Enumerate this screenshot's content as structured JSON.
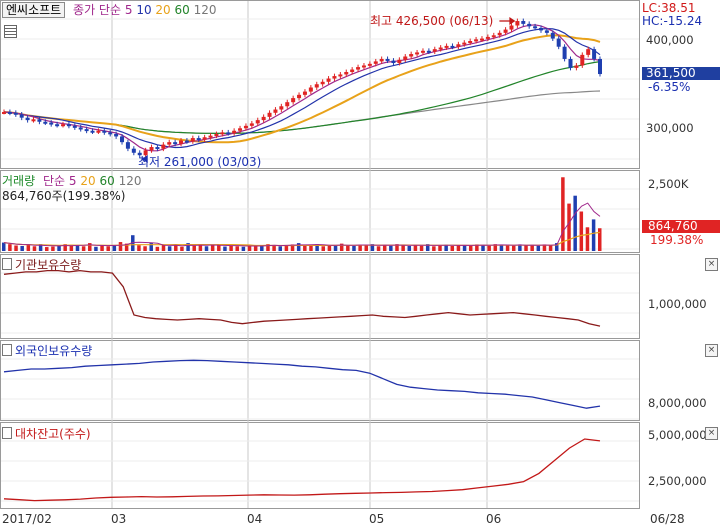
{
  "stock_name": "엔씨소프트",
  "price_pane": {
    "ma_label": "종가 단순",
    "ma_periods": [
      "5",
      "10",
      "20",
      "60",
      "120"
    ],
    "ma_colors": [
      "#a0288c",
      "#2233aa",
      "#e8a21a",
      "#22842a",
      "#888888"
    ],
    "lc": "LC:38.51",
    "hc": "HC:-15.24",
    "current_price": "361,500",
    "current_change": "-6.35%",
    "y_ticks": [
      "400,000",
      "300,000"
    ],
    "high_annotation": "최고 426,500 (06/13)",
    "low_annotation": "최저 261,000 (03/03)"
  },
  "volume_pane": {
    "title": "거래량",
    "ma_label": "단순",
    "ma_periods": [
      "5",
      "20",
      "60",
      "120"
    ],
    "subtitle": "864,760주(199.38%)",
    "y_tick": "2,500K",
    "current_volume": "864,760",
    "current_ratio": "199.38%"
  },
  "inst_pane": {
    "title": "기관보유수량",
    "y_tick": "1,000,000"
  },
  "foreign_pane": {
    "title": "외국인보유수량",
    "y_tick": "8,000,000"
  },
  "loan_pane": {
    "title": "대차잔고(주수)",
    "y_ticks": [
      "5,000,000",
      "2,500,000"
    ]
  },
  "x_axis": [
    "2017/02",
    "03",
    "04",
    "05",
    "06",
    "06/28"
  ],
  "chart_data": [
    {
      "type": "line",
      "title": "엔씨소프트",
      "series": [
        {
          "name": "종가",
          "values": [
            315000,
            314000,
            312000,
            308000,
            305000,
            306000,
            303000,
            302000,
            300000,
            299000,
            300000,
            298000,
            296000,
            294000,
            292000,
            291000,
            292000,
            290000,
            288000,
            285000,
            278000,
            270000,
            265000,
            262000,
            268000,
            272000,
            270000,
            275000,
            278000,
            276000,
            280000,
            279000,
            283000,
            281000,
            284000,
            286000,
            288000,
            290000,
            289000,
            292000,
            295000,
            298000,
            301000,
            305000,
            309000,
            314000,
            318000,
            322000,
            327000,
            332000,
            336000,
            340000,
            345000,
            349000,
            352000,
            356000,
            359000,
            361000,
            364000,
            367000,
            370000,
            372000,
            374000,
            377000,
            380000,
            378000,
            375000,
            379000,
            383000,
            386000,
            388000,
            390000,
            389000,
            392000,
            394000,
            396000,
            395000,
            398000,
            400000,
            402000,
            404000,
            405000,
            407000,
            409000,
            412000,
            416000,
            421000,
            426500,
            423000,
            420000,
            418000,
            415000,
            412000,
            405000,
            395000,
            380000,
            369000,
            372000,
            385000,
            392000,
            380000,
            361500
          ]
        }
      ],
      "ylim": [
        250000,
        440000
      ]
    },
    {
      "type": "bar",
      "title": "거래량",
      "series": [
        {
          "name": "거래량",
          "values": [
            320,
            260,
            210,
            190,
            240,
            180,
            260,
            150,
            170,
            200,
            260,
            230,
            210,
            180,
            300,
            160,
            200,
            180,
            220,
            340,
            280,
            600,
            220,
            180,
            300,
            160,
            240,
            180,
            220,
            160,
            300,
            200,
            240,
            180,
            210,
            260,
            170,
            200,
            180,
            160,
            230,
            180,
            200,
            260,
            210,
            180,
            220,
            250,
            300,
            200,
            230,
            260,
            180,
            210,
            200,
            280,
            220,
            190,
            240,
            210,
            260,
            180,
            230,
            200,
            260,
            210,
            190,
            230,
            200,
            260,
            180,
            220,
            240,
            190,
            230,
            210,
            200,
            250,
            230,
            200,
            260,
            210,
            230,
            200,
            250,
            210,
            230,
            200,
            250,
            220,
            300,
            2800,
            1800,
            2100,
            1500,
            900,
            1200,
            864.76
          ]
        }
      ],
      "ylim": [
        0,
        3000
      ]
    },
    {
      "type": "line",
      "title": "기관보유수량",
      "series": [
        {
          "name": "기관보유수량",
          "values": [
            1350000,
            1360000,
            1370000,
            1370000,
            1380000,
            1380000,
            1370000,
            1380000,
            1370000,
            1370000,
            1360000,
            1250000,
            1020000,
            1000000,
            990000,
            985000,
            980000,
            985000,
            990000,
            985000,
            980000,
            960000,
            950000,
            960000,
            970000,
            975000,
            980000,
            985000,
            990000,
            995000,
            1000000,
            1005000,
            1010000,
            1015000,
            1020000,
            1010000,
            1005000,
            1000000,
            1010000,
            1020000,
            1030000,
            1040000,
            1030000,
            1020000,
            1025000,
            1030000,
            1035000,
            1040000,
            1030000,
            1020000,
            1010000,
            1000000,
            990000,
            980000,
            950000,
            930000
          ]
        }
      ],
      "ylim": [
        850000,
        1450000
      ]
    },
    {
      "type": "line",
      "title": "외국인보유수량",
      "series": [
        {
          "name": "외국인보유수량",
          "values": [
            8230000,
            8240000,
            8250000,
            8250000,
            8255000,
            8260000,
            8270000,
            8275000,
            8280000,
            8285000,
            8290000,
            8300000,
            8305000,
            8310000,
            8312000,
            8310000,
            8305000,
            8300000,
            8295000,
            8290000,
            8285000,
            8280000,
            8270000,
            8265000,
            8255000,
            8245000,
            8240000,
            8220000,
            8180000,
            8140000,
            8120000,
            8110000,
            8100000,
            8095000,
            8090000,
            8080000,
            8075000,
            8070000,
            8060000,
            8050000,
            8030000,
            8010000,
            7990000,
            7970000,
            7985000
          ]
        }
      ],
      "ylim": [
        7900000,
        8400000
      ]
    },
    {
      "type": "line",
      "title": "대차잔고(주수)",
      "series": [
        {
          "name": "대차잔고(주수)",
          "values": [
            1600000,
            1550000,
            1500000,
            1520000,
            1540000,
            1580000,
            1640000,
            1680000,
            1700000,
            1720000,
            1700000,
            1710000,
            1730000,
            1750000,
            1760000,
            1780000,
            1800000,
            1820000,
            1810000,
            1800000,
            1820000,
            1850000,
            1880000,
            1900000,
            1920000,
            1940000,
            1950000,
            1980000,
            2000000,
            2050000,
            2100000,
            2200000,
            2300000,
            2400000,
            2550000,
            3000000,
            3700000,
            4400000,
            4900000,
            4800000
          ]
        }
      ],
      "ylim": [
        1200000,
        5400000
      ]
    }
  ]
}
